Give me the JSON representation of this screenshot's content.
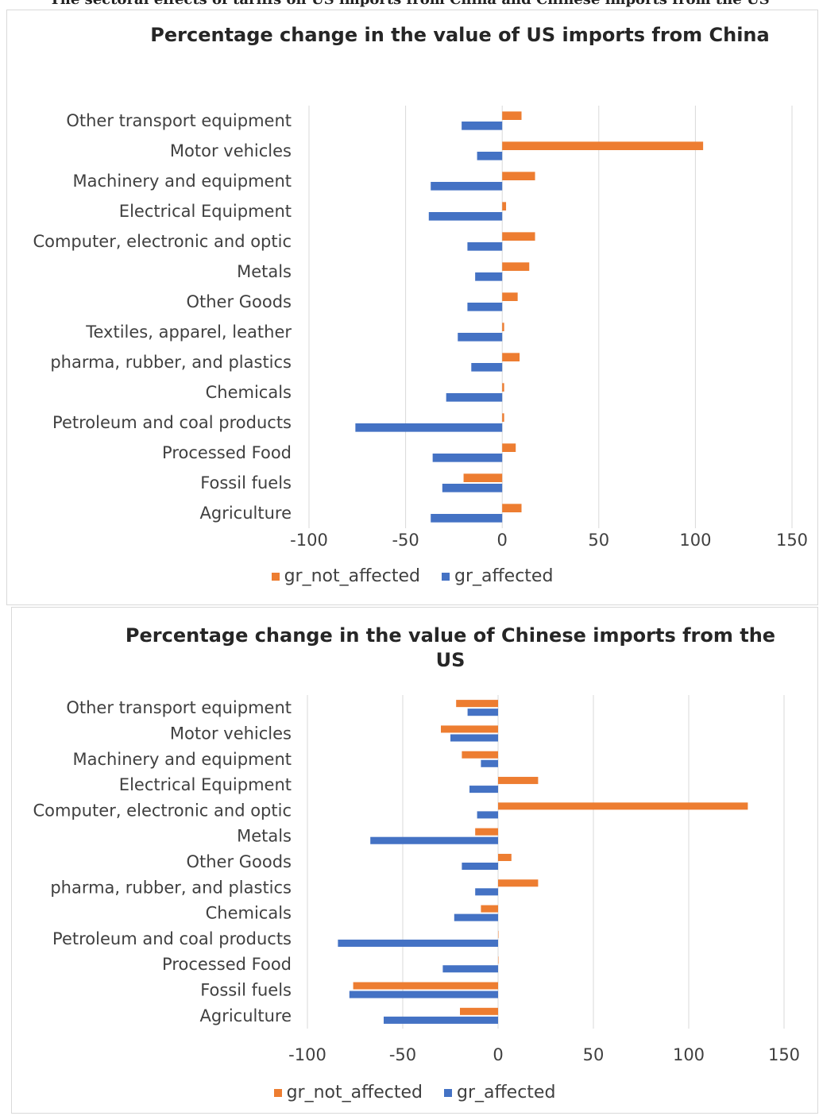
{
  "header_text": "The sectoral effects of tariffs on US imports from China and Chinese imports from the US",
  "colors": {
    "not_affected": "#ED7D31",
    "affected": "#4472C4",
    "grid": "#d9d9d9"
  },
  "chart_data": [
    {
      "type": "bar",
      "orientation": "horizontal",
      "title": "Percentage change in the value of US imports from China",
      "categories": [
        "Other transport equipment",
        "Motor vehicles",
        "Machinery and equipment",
        "Electrical Equipment",
        "Computer, electronic and optic",
        "Metals",
        "Other Goods",
        "Textiles, apparel, leather",
        "pharma, rubber, and plastics",
        "Chemicals",
        "Petroleum and coal products",
        "Processed Food",
        "Fossil fuels",
        "Agriculture"
      ],
      "series": [
        {
          "name": "gr_not_affected",
          "values": [
            10,
            104,
            17,
            2,
            17,
            14,
            8,
            1,
            9,
            1,
            1,
            7,
            -20,
            10
          ]
        },
        {
          "name": "gr_affected",
          "values": [
            -21,
            -13,
            -37,
            -38,
            -18,
            -14,
            -18,
            -23,
            -16,
            -29,
            -76,
            -36,
            -31,
            -37
          ]
        }
      ],
      "xlim": [
        -100,
        150
      ],
      "xticks": [
        -100,
        -50,
        0,
        50,
        100,
        150
      ],
      "grid": true,
      "legend": "bottom"
    },
    {
      "type": "bar",
      "orientation": "horizontal",
      "title": "Percentage change in the value of Chinese imports from the US",
      "categories": [
        "Other transport equipment",
        "Motor vehicles",
        "Machinery and equipment",
        "Electrical Equipment",
        "Computer, electronic and optic",
        "Metals",
        "Other Goods",
        "pharma, rubber, and plastics",
        "Chemicals",
        "Petroleum and coal products",
        "Processed Food",
        "Fossil fuels",
        "Agriculture"
      ],
      "series": [
        {
          "name": "gr_not_affected",
          "values": [
            -22,
            -30,
            -19,
            21,
            131,
            -12,
            7,
            21,
            -9,
            0,
            0,
            -76,
            -20
          ]
        },
        {
          "name": "gr_affected",
          "values": [
            -16,
            -25,
            -9,
            -15,
            -11,
            -67,
            -19,
            -12,
            -23,
            -84,
            -29,
            -78,
            -60
          ]
        }
      ],
      "xlim": [
        -100,
        150
      ],
      "xticks": [
        -100,
        -50,
        0,
        50,
        100,
        150
      ],
      "grid": true,
      "legend": "bottom"
    }
  ]
}
